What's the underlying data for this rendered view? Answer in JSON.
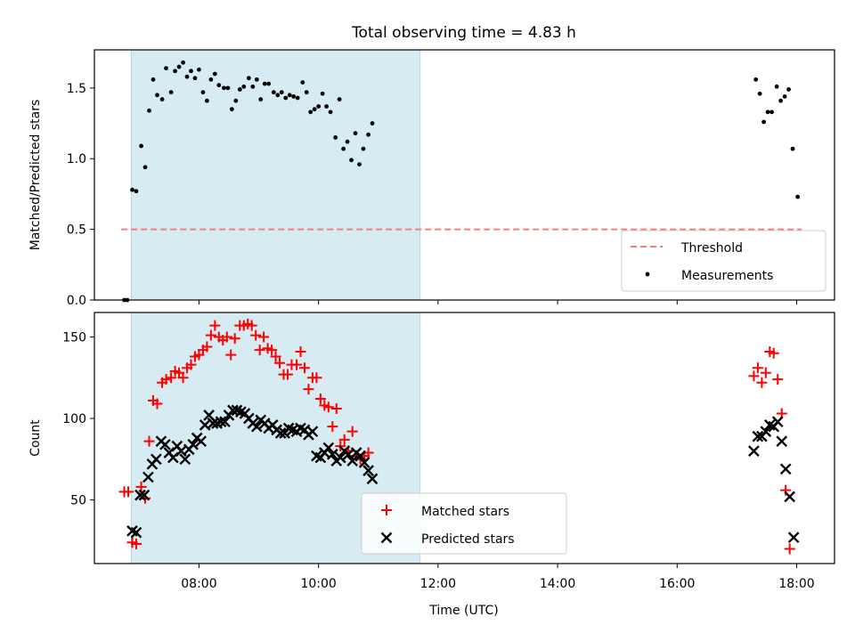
{
  "title": "Total observing time = 4.83 h",
  "xlabel": "Time (UTC)",
  "x_tick_labels": [
    "08:00",
    "10:00",
    "12:00",
    "14:00",
    "16:00",
    "18:00"
  ],
  "chart_data": [
    {
      "type": "scatter",
      "ylabel": "Matched/Predicted stars",
      "xlim": [
        "06:15",
        "18:38"
      ],
      "ylim": [
        0,
        1.77
      ],
      "y_ticks": [
        0.0,
        0.5,
        1.0,
        1.5
      ],
      "y_tick_labels": [
        "0.0",
        "0.5",
        "1.0",
        "1.5"
      ],
      "legend_position": "lower-right",
      "shaded_interval": {
        "start": "06:52",
        "end": "11:42",
        "color": "#add8e6"
      },
      "threshold": {
        "name": "Threshold",
        "value": 0.5,
        "x_start": "06:42",
        "x_end": "18:05",
        "color": "#f08080",
        "style": "dashed"
      },
      "series": [
        {
          "name": "Measurements",
          "marker": "dot",
          "color": "#000000",
          "points": [
            [
              "06:45",
              0.0
            ],
            [
              "06:48",
              0.0
            ],
            [
              "06:53",
              0.78
            ],
            [
              "06:57",
              0.77
            ],
            [
              "07:02",
              1.09
            ],
            [
              "07:06",
              0.94
            ],
            [
              "07:10",
              1.34
            ],
            [
              "07:14",
              1.56
            ],
            [
              "07:18",
              1.45
            ],
            [
              "07:23",
              1.42
            ],
            [
              "07:27",
              1.64
            ],
            [
              "07:32",
              1.47
            ],
            [
              "07:36",
              1.62
            ],
            [
              "07:40",
              1.65
            ],
            [
              "07:44",
              1.68
            ],
            [
              "07:48",
              1.58
            ],
            [
              "07:52",
              1.62
            ],
            [
              "07:56",
              1.57
            ],
            [
              "08:00",
              1.63
            ],
            [
              "08:04",
              1.47
            ],
            [
              "08:08",
              1.41
            ],
            [
              "08:12",
              1.56
            ],
            [
              "08:16",
              1.6
            ],
            [
              "08:20",
              1.52
            ],
            [
              "08:25",
              1.5
            ],
            [
              "08:29",
              1.5
            ],
            [
              "08:33",
              1.35
            ],
            [
              "08:37",
              1.41
            ],
            [
              "08:41",
              1.49
            ],
            [
              "08:45",
              1.51
            ],
            [
              "08:50",
              1.57
            ],
            [
              "08:54",
              1.51
            ],
            [
              "08:58",
              1.56
            ],
            [
              "09:02",
              1.42
            ],
            [
              "09:06",
              1.53
            ],
            [
              "09:10",
              1.53
            ],
            [
              "09:15",
              1.47
            ],
            [
              "09:19",
              1.45
            ],
            [
              "09:23",
              1.47
            ],
            [
              "09:27",
              1.43
            ],
            [
              "09:31",
              1.45
            ],
            [
              "09:35",
              1.44
            ],
            [
              "09:39",
              1.43
            ],
            [
              "09:44",
              1.54
            ],
            [
              "09:48",
              1.47
            ],
            [
              "09:52",
              1.33
            ],
            [
              "09:56",
              1.35
            ],
            [
              "10:00",
              1.37
            ],
            [
              "10:04",
              1.46
            ],
            [
              "10:08",
              1.37
            ],
            [
              "10:12",
              1.33
            ],
            [
              "10:17",
              1.15
            ],
            [
              "10:21",
              1.42
            ],
            [
              "10:25",
              1.07
            ],
            [
              "10:29",
              1.12
            ],
            [
              "10:33",
              0.99
            ],
            [
              "10:37",
              1.18
            ],
            [
              "10:41",
              0.96
            ],
            [
              "10:45",
              1.07
            ],
            [
              "10:50",
              1.17
            ],
            [
              "10:54",
              1.25
            ],
            [
              "17:19",
              1.56
            ],
            [
              "17:23",
              1.46
            ],
            [
              "17:27",
              1.26
            ],
            [
              "17:31",
              1.33
            ],
            [
              "17:35",
              1.33
            ],
            [
              "17:40",
              1.51
            ],
            [
              "17:44",
              1.41
            ],
            [
              "17:48",
              1.44
            ],
            [
              "17:52",
              1.49
            ],
            [
              "17:56",
              1.07
            ],
            [
              "18:01",
              0.73
            ]
          ]
        }
      ]
    },
    {
      "type": "scatter",
      "ylabel": "Count",
      "xlim": [
        "06:15",
        "18:38"
      ],
      "ylim": [
        11,
        165
      ],
      "y_ticks": [
        50,
        100,
        150
      ],
      "y_tick_labels": [
        "50",
        "100",
        "150"
      ],
      "legend_position": "bottom-center",
      "shaded_interval": {
        "start": "06:52",
        "end": "11:42",
        "color": "#add8e6"
      },
      "series": [
        {
          "name": "Matched stars",
          "marker": "plus",
          "color": "#ff0000",
          "points": [
            [
              "06:45",
              55
            ],
            [
              "06:49",
              55
            ],
            [
              "06:53",
              24
            ],
            [
              "06:57",
              23
            ],
            [
              "07:02",
              58
            ],
            [
              "07:06",
              51
            ],
            [
              "07:10",
              86
            ],
            [
              "07:14",
              111
            ],
            [
              "07:18",
              109
            ],
            [
              "07:23",
              122
            ],
            [
              "07:27",
              124
            ],
            [
              "07:32",
              125
            ],
            [
              "07:36",
              129
            ],
            [
              "07:40",
              128
            ],
            [
              "07:44",
              125
            ],
            [
              "07:48",
              131
            ],
            [
              "07:52",
              133
            ],
            [
              "07:56",
              138
            ],
            [
              "08:00",
              139
            ],
            [
              "08:04",
              142
            ],
            [
              "08:08",
              144
            ],
            [
              "08:12",
              151
            ],
            [
              "08:16",
              157
            ],
            [
              "08:20",
              150
            ],
            [
              "08:24",
              148
            ],
            [
              "08:28",
              150
            ],
            [
              "08:32",
              139
            ],
            [
              "08:36",
              149
            ],
            [
              "08:41",
              157
            ],
            [
              "08:45",
              157
            ],
            [
              "08:49",
              158
            ],
            [
              "08:53",
              157
            ],
            [
              "08:57",
              151
            ],
            [
              "09:01",
              142
            ],
            [
              "09:05",
              150
            ],
            [
              "09:09",
              143
            ],
            [
              "09:13",
              142
            ],
            [
              "09:17",
              138
            ],
            [
              "09:21",
              134
            ],
            [
              "09:25",
              127
            ],
            [
              "09:29",
              127
            ],
            [
              "09:33",
              133
            ],
            [
              "09:38",
              133
            ],
            [
              "09:42",
              141
            ],
            [
              "09:46",
              131
            ],
            [
              "09:50",
              118
            ],
            [
              "09:54",
              125
            ],
            [
              "09:58",
              125
            ],
            [
              "10:02",
              112
            ],
            [
              "10:06",
              108
            ],
            [
              "10:10",
              107
            ],
            [
              "10:14",
              95
            ],
            [
              "10:18",
              106
            ],
            [
              "10:22",
              83
            ],
            [
              "10:26",
              87
            ],
            [
              "10:30",
              80
            ],
            [
              "10:34",
              92
            ],
            [
              "10:38",
              77
            ],
            [
              "10:42",
              75
            ],
            [
              "10:46",
              77
            ],
            [
              "10:50",
              79
            ],
            [
              "17:17",
              126
            ],
            [
              "17:21",
              131
            ],
            [
              "17:25",
              122
            ],
            [
              "17:29",
              128
            ],
            [
              "17:33",
              141
            ],
            [
              "17:37",
              140
            ],
            [
              "17:41",
              124
            ],
            [
              "17:45",
              103
            ],
            [
              "17:49",
              56
            ],
            [
              "17:53",
              20
            ]
          ]
        },
        {
          "name": "Predicted stars",
          "marker": "x",
          "color": "#000000",
          "points": [
            [
              "06:53",
              31
            ],
            [
              "06:57",
              30
            ],
            [
              "07:01",
              53
            ],
            [
              "07:05",
              53
            ],
            [
              "07:09",
              64
            ],
            [
              "07:13",
              72
            ],
            [
              "07:17",
              75
            ],
            [
              "07:22",
              86
            ],
            [
              "07:26",
              84
            ],
            [
              "07:30",
              79
            ],
            [
              "07:34",
              76
            ],
            [
              "07:38",
              83
            ],
            [
              "07:42",
              80
            ],
            [
              "07:46",
              75
            ],
            [
              "07:50",
              81
            ],
            [
              "07:54",
              84
            ],
            [
              "07:58",
              88
            ],
            [
              "08:02",
              86
            ],
            [
              "08:06",
              96
            ],
            [
              "08:10",
              102
            ],
            [
              "08:14",
              97
            ],
            [
              "08:18",
              97
            ],
            [
              "08:22",
              98
            ],
            [
              "08:26",
              98
            ],
            [
              "08:30",
              102
            ],
            [
              "08:34",
              105
            ],
            [
              "08:38",
              105
            ],
            [
              "08:42",
              104
            ],
            [
              "08:46",
              103
            ],
            [
              "08:50",
              100
            ],
            [
              "08:54",
              97
            ],
            [
              "08:58",
              95
            ],
            [
              "09:02",
              99
            ],
            [
              "09:06",
              97
            ],
            [
              "09:10",
              94
            ],
            [
              "09:14",
              96
            ],
            [
              "09:18",
              93
            ],
            [
              "09:22",
              91
            ],
            [
              "09:26",
              91
            ],
            [
              "09:30",
              94
            ],
            [
              "09:34",
              93
            ],
            [
              "09:38",
              92
            ],
            [
              "09:42",
              94
            ],
            [
              "09:46",
              93
            ],
            [
              "09:50",
              90
            ],
            [
              "09:54",
              92
            ],
            [
              "09:58",
              77
            ],
            [
              "10:02",
              76
            ],
            [
              "10:06",
              79
            ],
            [
              "10:10",
              82
            ],
            [
              "10:14",
              78
            ],
            [
              "10:18",
              74
            ],
            [
              "10:22",
              76
            ],
            [
              "10:26",
              80
            ],
            [
              "10:30",
              78
            ],
            [
              "10:34",
              74
            ],
            [
              "10:38",
              79
            ],
            [
              "10:42",
              77
            ],
            [
              "10:46",
              73
            ],
            [
              "10:50",
              68
            ],
            [
              "10:54",
              63
            ],
            [
              "17:17",
              80
            ],
            [
              "17:21",
              89
            ],
            [
              "17:25",
              89
            ],
            [
              "17:29",
              92
            ],
            [
              "17:33",
              96
            ],
            [
              "17:37",
              95
            ],
            [
              "17:41",
              98
            ],
            [
              "17:45",
              86
            ],
            [
              "17:49",
              69
            ],
            [
              "17:53",
              52
            ],
            [
              "17:57",
              27
            ]
          ]
        }
      ]
    }
  ]
}
